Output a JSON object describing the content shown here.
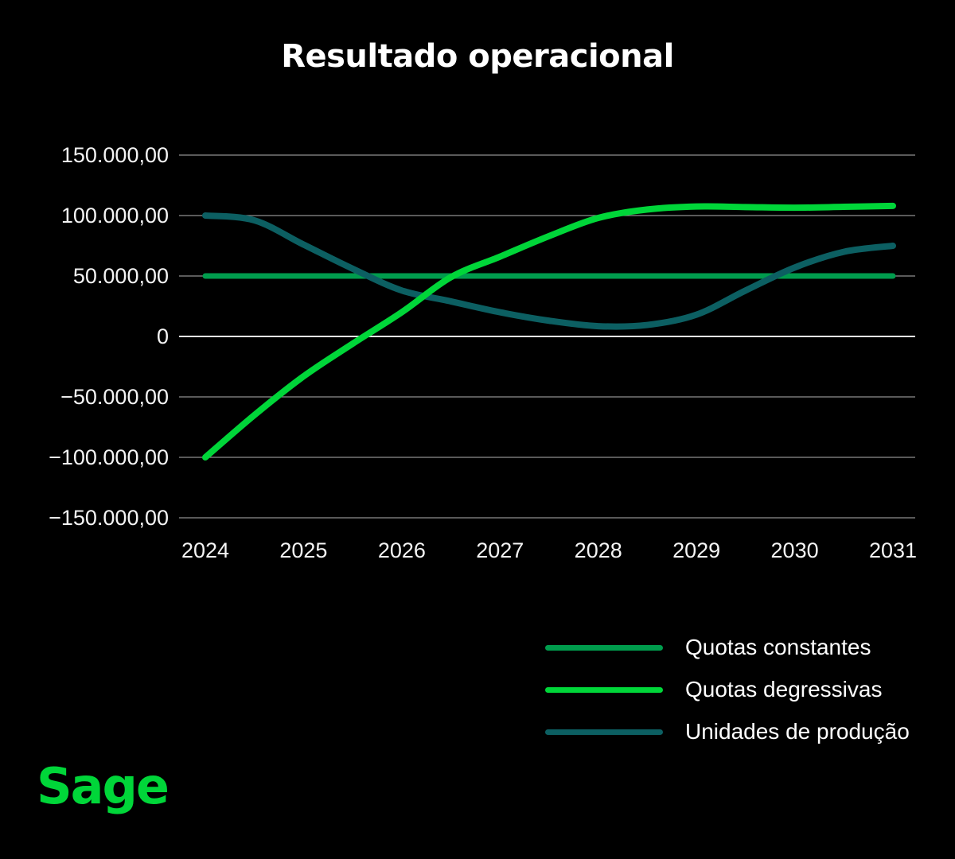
{
  "page": {
    "background": "#000000",
    "accent_green": "#00D639",
    "gridline_color": "#8F8F8F",
    "zero_line_color": "#EDEDED",
    "text_color": "#FFFFFF"
  },
  "header": {
    "title": "Resultado operacional"
  },
  "chart_data": {
    "type": "line",
    "title": "Resultado operacional",
    "xlabel": "",
    "ylabel": "",
    "xlim": [
      2024,
      2031
    ],
    "ylim": [
      -150000,
      150000
    ],
    "grid": "horizontal",
    "legend_position": "bottom-right",
    "x": [
      2024,
      2024.5,
      2025,
      2025.5,
      2026,
      2026.5,
      2027,
      2027.5,
      2028,
      2028.5,
      2029,
      2029.5,
      2030,
      2030.5,
      2031
    ],
    "x_ticks": [
      2024,
      2025,
      2026,
      2027,
      2028,
      2029,
      2030,
      2031
    ],
    "x_tick_labels": [
      "2024",
      "2025",
      "2026",
      "2027",
      "2028",
      "2029",
      "2030",
      "2031"
    ],
    "y_ticks": [
      {
        "value": 150000,
        "label": "150.000,00"
      },
      {
        "value": 100000,
        "label": "100.000,00"
      },
      {
        "value": 50000,
        "label": "50.000,00"
      },
      {
        "value": 0,
        "label": "0"
      },
      {
        "value": -50000,
        "label": "−50.000,00"
      },
      {
        "value": -100000,
        "label": "−100.000,00"
      },
      {
        "value": -150000,
        "label": "−150.000,00"
      }
    ],
    "series": [
      {
        "name": "Quotas constantes",
        "color": "#009C4D",
        "stroke_width": 7,
        "values": [
          50000,
          50000,
          50000,
          50000,
          50000,
          50000,
          50000,
          50000,
          50000,
          50000,
          50000,
          50000,
          50000,
          50000,
          50000
        ]
      },
      {
        "name": "Quotas degressivas",
        "color": "#00D639",
        "stroke_width": 8,
        "values": [
          -100000,
          -65000,
          -33000,
          -6000,
          20000,
          49000,
          66000,
          83000,
          98000,
          105000,
          107500,
          107000,
          106500,
          107200,
          108000
        ]
      },
      {
        "name": "Unidades de produção",
        "color": "#0C5F62",
        "stroke_width": 8,
        "values": [
          100000,
          96000,
          76000,
          56000,
          38000,
          29000,
          20000,
          13000,
          8500,
          9500,
          18000,
          38000,
          57000,
          70000,
          75000
        ]
      }
    ]
  },
  "footer": {
    "logo_text": "Sage",
    "logo_color": "#00D639"
  }
}
